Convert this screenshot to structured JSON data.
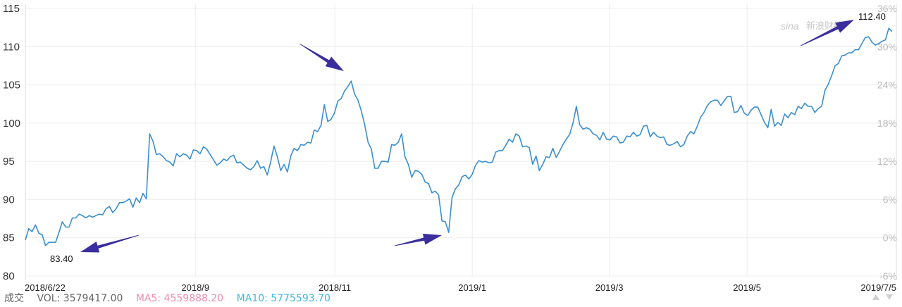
{
  "chart_data": {
    "type": "line",
    "title": "",
    "xlabel": "",
    "ylabel": "",
    "ylim": [
      80,
      115
    ],
    "y_ticks": [
      80,
      85,
      90,
      95,
      100,
      105,
      110,
      115
    ],
    "y2_ticks": [
      "-6%",
      "0%",
      "6%",
      "12%",
      "18%",
      "24%",
      "30%",
      "36%"
    ],
    "x_tick_labels": [
      "2018/6/22",
      "2018/9",
      "2018/11",
      "2019/1",
      "2019/3",
      "2019/5",
      "2019/7/5"
    ],
    "grid": true,
    "series": [
      {
        "color": "#3a8fd0",
        "values": [
          84.7,
          86.2,
          85.8,
          86.7,
          85.6,
          85.4,
          84.0,
          84.4,
          84.4,
          84.4,
          85.7,
          87.1,
          86.4,
          86.4,
          87.6,
          87.6,
          88.1,
          87.9,
          87.6,
          87.9,
          87.7,
          87.9,
          88.1,
          88.0,
          88.8,
          89.1,
          88.3,
          88.8,
          89.6,
          89.6,
          89.8,
          90.1,
          89.0,
          90.2,
          89.6,
          90.8,
          90.1,
          98.6,
          97.6,
          95.9,
          96.0,
          95.6,
          95.1,
          94.9,
          94.4,
          96.0,
          95.6,
          96.0,
          95.8,
          95.3,
          96.5,
          96.4,
          96.0,
          96.9,
          96.6,
          95.9,
          95.2,
          94.5,
          94.8,
          95.3,
          95.1,
          95.6,
          95.8,
          94.8,
          94.9,
          94.5,
          94.1,
          93.9,
          94.3,
          95.1,
          94.1,
          94.3,
          93.2,
          94.9,
          97.0,
          95.6,
          93.8,
          94.6,
          93.6,
          95.7,
          96.7,
          96.4,
          97.2,
          97.1,
          97.5,
          97.4,
          99.1,
          98.9,
          99.7,
          102.4,
          100.2,
          100.5,
          101.3,
          102.9,
          103.2,
          104.2,
          104.8,
          105.5,
          103.8,
          103.0,
          101.6,
          99.8,
          97.5,
          96.6,
          94.1,
          94.1,
          95.0,
          95.0,
          94.9,
          97.2,
          97.1,
          97.5,
          98.6,
          95.6,
          94.6,
          92.9,
          93.8,
          93.7,
          93.3,
          92.3,
          92.1,
          90.9,
          91.1,
          90.6,
          87.2,
          87.1,
          85.7,
          90.3,
          91.4,
          91.9,
          93.0,
          93.2,
          92.7,
          93.3,
          94.5,
          95.1,
          94.9,
          95.0,
          94.8,
          94.9,
          96.2,
          96.4,
          96.4,
          97.1,
          97.9,
          97.5,
          98.6,
          98.3,
          96.9,
          97.0,
          96.8,
          94.6,
          95.7,
          93.8,
          94.6,
          95.6,
          95.5,
          96.7,
          95.5,
          96.3,
          97.2,
          97.9,
          98.5,
          100.0,
          102.2,
          99.8,
          99.2,
          99.4,
          99.2,
          98.6,
          98.4,
          97.8,
          98.8,
          97.9,
          97.8,
          98.3,
          98.2,
          97.4,
          97.5,
          98.3,
          98.2,
          98.8,
          98.3,
          98.5,
          99.6,
          99.7,
          98.2,
          98.8,
          98.3,
          98.1,
          98.2,
          97.2,
          97.1,
          97.3,
          97.6,
          96.9,
          97.2,
          98.3,
          98.9,
          98.6,
          99.6,
          100.8,
          101.4,
          102.3,
          102.8,
          103.0,
          103.0,
          102.3,
          102.9,
          103.5,
          103.5,
          101.4,
          101.5,
          102.3,
          101.3,
          101.0,
          101.7,
          102.1,
          102.1,
          101.1,
          100.1,
          99.4,
          101.8,
          99.6,
          100.1,
          99.7,
          101.2,
          100.7,
          101.4,
          101.1,
          102.2,
          101.9,
          102.6,
          102.2,
          102.2,
          101.4,
          101.9,
          102.2,
          104.3,
          105.1,
          106.2,
          107.5,
          107.8,
          108.8,
          108.9,
          109.2,
          109.2,
          109.6,
          109.6,
          110.4,
          111.2,
          111.3,
          110.6,
          110.2,
          110.4,
          110.7,
          110.9,
          112.4,
          112.0
        ]
      }
    ],
    "annotations": [
      {
        "text": "83.40",
        "value": 83.4,
        "target": "low"
      },
      {
        "text": "112.40",
        "value": 112.4,
        "target": "high"
      }
    ],
    "arrow_color": "#3a2e9e"
  },
  "watermark": {
    "brand": "sina",
    "text": "新浪财经"
  },
  "footer": {
    "label": "成交",
    "vol": "VOL: 3579417.00",
    "ma5": "MA5: 4559888.20",
    "ma10": "MA10: 5775593.70"
  }
}
